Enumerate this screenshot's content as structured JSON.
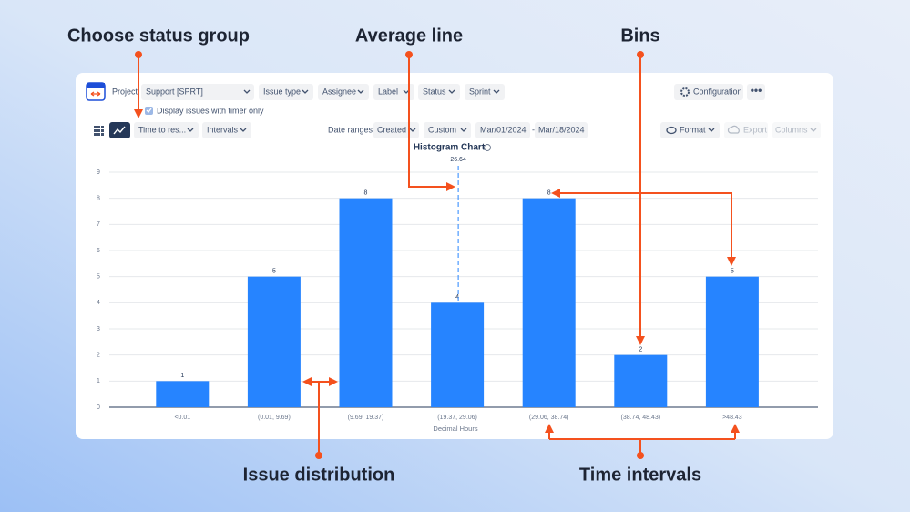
{
  "annotations": {
    "status_group": "Choose status group",
    "average_line": "Average line",
    "bins": "Bins",
    "issue_distribution": "Issue distribution",
    "time_intervals": "Time intervals"
  },
  "toolbar": {
    "project_label": "Project:",
    "project": "Support [SPRT]",
    "filters": [
      "Issue type",
      "Assignee",
      "Label",
      "Status",
      "Sprint"
    ],
    "configuration": "Configuration",
    "checkbox": "Display issues with timer only",
    "group": "Time to res...",
    "intervals": "Intervals",
    "date_ranges_label": "Date ranges:",
    "date_field": "Created",
    "range": "Custom",
    "date_from": "Mar/01/2024",
    "date_sep": "-",
    "date_to": "Mar/18/2024",
    "format": "Format",
    "export": "Export",
    "columns": "Columns"
  },
  "chart_data": {
    "type": "bar",
    "title": "Histogram Chart",
    "x_label": "Decimal Hours",
    "categories": [
      "<0.01",
      "(0.01, 9.69)",
      "(9.69, 19.37)",
      "(19.37, 29.06)",
      "(29.06, 38.74)",
      "(38.74, 48.43)",
      ">48.43"
    ],
    "values": [
      1,
      5,
      8,
      4,
      8,
      2,
      5
    ],
    "color": "#2684ff",
    "average": 26.64,
    "ylim": [
      0,
      9
    ],
    "yticks": [
      0,
      1,
      2,
      3,
      4,
      5,
      6,
      7,
      8,
      9
    ],
    "grid": true
  }
}
